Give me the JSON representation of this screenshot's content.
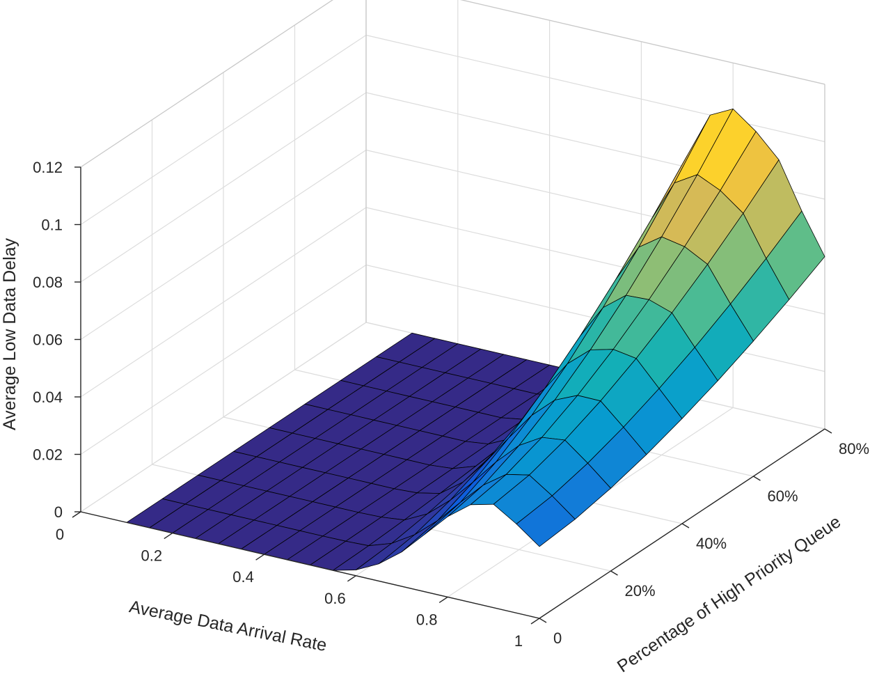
{
  "chart_data": {
    "type": "surface",
    "title": "",
    "xlabel": "Average Data Arrival Rate",
    "ylabel": "Percentage of High Priority Queue",
    "zlabel": "Average Low Data Delay",
    "xlim": [
      0,
      1
    ],
    "ylim": [
      0,
      0.8
    ],
    "zlim": [
      0,
      0.12
    ],
    "x_ticks": [
      {
        "value": 0,
        "label": "0"
      },
      {
        "value": 0.2,
        "label": "0.2"
      },
      {
        "value": 0.4,
        "label": "0.4"
      },
      {
        "value": 0.6,
        "label": "0.6"
      },
      {
        "value": 0.8,
        "label": "0.8"
      },
      {
        "value": 1,
        "label": "1"
      }
    ],
    "y_ticks": [
      {
        "value": 0,
        "label": "0"
      },
      {
        "value": 0.2,
        "label": "20%"
      },
      {
        "value": 0.4,
        "label": "40%"
      },
      {
        "value": 0.6,
        "label": "60%"
      },
      {
        "value": 0.8,
        "label": "80%"
      }
    ],
    "z_ticks": [
      {
        "value": 0,
        "label": "0"
      },
      {
        "value": 0.02,
        "label": "0.02"
      },
      {
        "value": 0.04,
        "label": "0.04"
      },
      {
        "value": 0.06,
        "label": "0.06"
      },
      {
        "value": 0.08,
        "label": "0.08"
      },
      {
        "value": 0.1,
        "label": "0.1"
      },
      {
        "value": 0.12,
        "label": "0.12"
      }
    ],
    "grid": true,
    "colormap": "parula",
    "surface_x": [
      0.1,
      0.15,
      0.2,
      0.25,
      0.3,
      0.35,
      0.4,
      0.45,
      0.5,
      0.55,
      0.6,
      0.65,
      0.7,
      0.75,
      0.8,
      0.85,
      0.9,
      0.95,
      1.0
    ],
    "surface_y": [
      0,
      0.1,
      0.2,
      0.3,
      0.4,
      0.5,
      0.6,
      0.7,
      0.8
    ],
    "peak_delay_at_y0": [
      0.0,
      0.0,
      0.0,
      0.0,
      0.0,
      0.0,
      0.0,
      0.0,
      0.0,
      0.0,
      0.002,
      0.006,
      0.012,
      0.02,
      0.028,
      0.034,
      0.036,
      0.031,
      0.025
    ],
    "peak_delay_at_y08": [
      0.0,
      0.0,
      0.0,
      0.0,
      0.0,
      0.0,
      0.0,
      0.0,
      0.002,
      0.01,
      0.03,
      0.058,
      0.084,
      0.1,
      0.104,
      0.098,
      0.09,
      0.074,
      0.06
    ],
    "edge_color": "#000000"
  }
}
